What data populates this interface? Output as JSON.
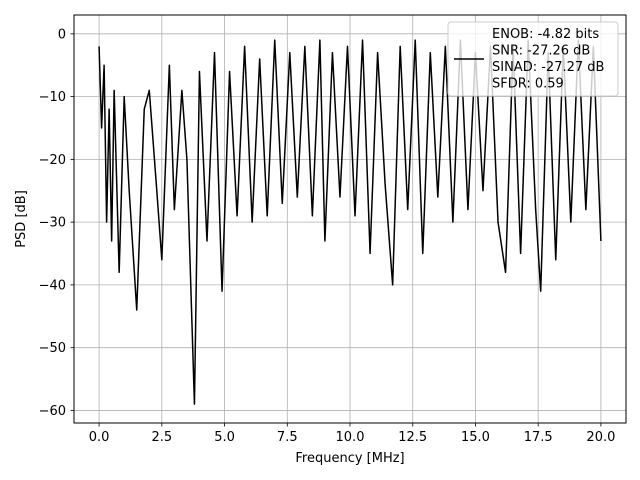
{
  "chart_data": {
    "type": "line",
    "xlabel": "Frequency [MHz]",
    "ylabel": "PSD [dB]",
    "xlim": [
      -1.0,
      21.0
    ],
    "ylim": [
      -62.0,
      3.0
    ],
    "xticks": [
      0.0,
      2.5,
      5.0,
      7.5,
      10.0,
      12.5,
      15.0,
      17.5,
      20.0
    ],
    "xtick_labels": [
      "0.0",
      "2.5",
      "5.0",
      "7.5",
      "10.0",
      "12.5",
      "15.0",
      "17.5",
      "20.0"
    ],
    "yticks": [
      0,
      -10,
      -20,
      -30,
      -40,
      -50,
      -60
    ],
    "ytick_labels": [
      "0",
      "−10",
      "−20",
      "−30",
      "−40",
      "−50",
      "−60"
    ],
    "grid": true,
    "legend_position": "top-right",
    "line_color": "#000000",
    "legend": {
      "lines": [
        "ENOB: -4.82 bits",
        "SNR: -27.26 dB",
        "SINAD: -27.27 dB",
        "SFDR: 0.59"
      ]
    },
    "series": [
      {
        "x": [
          0.0,
          0.1,
          0.2,
          0.3,
          0.4,
          0.5,
          0.6,
          0.8,
          1.0,
          1.2,
          1.5,
          1.8,
          2.0,
          2.3,
          2.5,
          2.8,
          3.0,
          3.3,
          3.5,
          3.8,
          4.0,
          4.3,
          4.6,
          4.9,
          5.2,
          5.5,
          5.8,
          6.1,
          6.4,
          6.7,
          7.0,
          7.3,
          7.6,
          7.9,
          8.2,
          8.5,
          8.8,
          9.0,
          9.3,
          9.6,
          9.9,
          10.2,
          10.5,
          10.8,
          11.1,
          11.4,
          11.7,
          12.0,
          12.3,
          12.6,
          12.9,
          13.2,
          13.5,
          13.8,
          14.1,
          14.4,
          14.7,
          15.0,
          15.3,
          15.6,
          15.9,
          16.2,
          16.5,
          16.8,
          17.1,
          17.4,
          17.6,
          17.9,
          18.2,
          18.5,
          18.8,
          19.1,
          19.4,
          19.7,
          20.0
        ],
        "y": [
          -2,
          -15,
          -5,
          -30,
          -12,
          -33,
          -9,
          -38,
          -10,
          -25,
          -44,
          -12,
          -9,
          -25,
          -36,
          -5,
          -28,
          -9,
          -20,
          -59,
          -6,
          -33,
          -3,
          -41,
          -6,
          -29,
          -2,
          -30,
          -4,
          -29,
          -1,
          -27,
          -3,
          -26,
          -2,
          -29,
          -1,
          -33,
          -3,
          -26,
          -2,
          -29,
          -1,
          -35,
          -3,
          -24,
          -40,
          -2,
          -28,
          -1,
          -35,
          -3,
          -26,
          -2,
          -30,
          -1,
          -28,
          -3,
          -25,
          -2,
          -30,
          -38,
          -2,
          -35,
          -1,
          -28,
          -41,
          -3,
          -36,
          -2,
          -30,
          -1,
          -28,
          -2,
          -33
        ]
      }
    ]
  }
}
